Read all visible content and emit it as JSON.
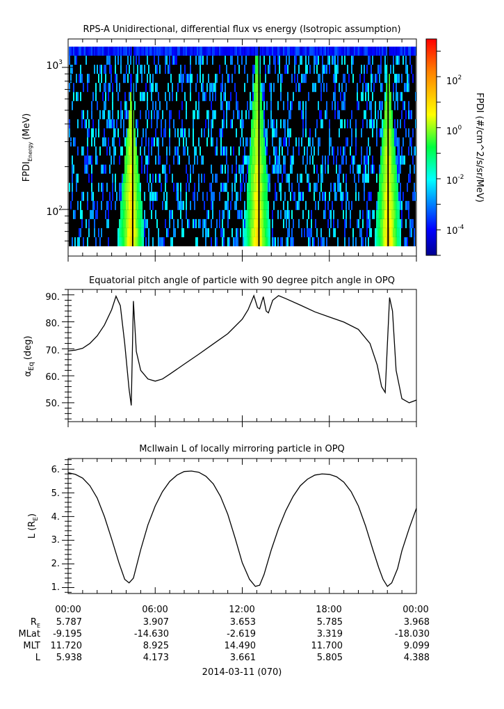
{
  "panels": [
    {
      "id": "spectrogram",
      "title": "RPS-A Unidirectional, differential flux vs energy (Isotropic assumption)",
      "ylabel_main": "FPDI",
      "ylabel_sub": "Energy",
      "ylabel_unit": "(MeV)",
      "yticks": [
        {
          "base": "10",
          "exp": "3"
        },
        {
          "base": "10",
          "exp": "2"
        }
      ]
    },
    {
      "id": "pitch-angle",
      "title": "Equatorial pitch angle of particle with 90 degree pitch angle in OPQ",
      "ylabel_main": "α",
      "ylabel_sub": "Eq",
      "ylabel_unit": "(deg)",
      "yticks": [
        "90.",
        "80.",
        "70.",
        "60.",
        "50."
      ]
    },
    {
      "id": "mcilwain-l",
      "title": "McIlwain L of locally mirroring particle in OPQ",
      "ylabel_main": "L (R",
      "ylabel_sub": "E",
      "ylabel_unit": ")",
      "yticks": [
        "6.",
        "5.",
        "4.",
        "3.",
        "2.",
        "1."
      ]
    }
  ],
  "colorbar": {
    "label": "FPDI (#/cm^2/s/sr/MeV)",
    "ticks": [
      {
        "base": "10",
        "exp": "2"
      },
      {
        "base": "10",
        "exp": "0"
      },
      {
        "base": "10",
        "exp": "-2"
      },
      {
        "base": "10",
        "exp": "-4"
      }
    ]
  },
  "xaxis": {
    "ticks": [
      "00:00",
      "06:00",
      "12:00",
      "18:00",
      "00:00"
    ],
    "ephemeris": [
      {
        "label_main": "R",
        "label_sub": "E",
        "values": [
          "5.787",
          "3.907",
          "3.653",
          "5.785",
          "3.968"
        ]
      },
      {
        "label_main": "MLat",
        "label_sub": "",
        "values": [
          "-9.195",
          "-14.630",
          "-2.619",
          "3.319",
          "-18.030"
        ]
      },
      {
        "label_main": "MLT",
        "label_sub": "",
        "values": [
          "11.720",
          "8.925",
          "14.490",
          "11.700",
          "9.099"
        ]
      },
      {
        "label_main": "L",
        "label_sub": "",
        "values": [
          "5.938",
          "4.173",
          "3.661",
          "5.805",
          "4.388"
        ]
      }
    ],
    "date_label": "2014-03-11 (070)"
  },
  "chart_data": [
    {
      "type": "heatmap",
      "title": "RPS-A Unidirectional, differential flux vs energy (Isotropic assumption)",
      "xlabel": "",
      "ylabel": "FPDI Energy (MeV)",
      "x_range_hours": [
        0,
        24
      ],
      "ylim": [
        55,
        1400
      ],
      "y_scale": "log",
      "color_scale": "log",
      "color_range": [
        1e-05,
        3000
      ],
      "colormap": "rainbow",
      "flux_peaks": [
        {
          "center_hour": 4.3,
          "max_energy": 550
        },
        {
          "center_hour": 13.0,
          "max_energy": 1400
        },
        {
          "center_hour": 22.0,
          "max_energy": 900
        }
      ]
    },
    {
      "type": "line",
      "title": "Equatorial pitch angle of particle with 90 degree pitch angle in OPQ",
      "xlabel": "",
      "ylabel": "α Eq (deg)",
      "ylim": [
        43,
        92
      ],
      "x": [
        0,
        0.5,
        1,
        1.5,
        2,
        2.5,
        3,
        3.3,
        3.6,
        3.9,
        4.2,
        4.35,
        4.5,
        4.7,
        5.0,
        5.5,
        6.0,
        6.5,
        7,
        8,
        9,
        10,
        11,
        12,
        12.4,
        12.8,
        13.05,
        13.2,
        13.45,
        13.65,
        13.8,
        14.1,
        14.5,
        15,
        16,
        17,
        18,
        19,
        20,
        20.8,
        21.3,
        21.6,
        21.85,
        22.0,
        22.15,
        22.35,
        22.6,
        23.0,
        23.5,
        24
      ],
      "values": [
        69.2,
        69.5,
        70.2,
        72.0,
        74.8,
        78.8,
        84.5,
        89.5,
        86.0,
        72.0,
        55.0,
        49.0,
        87.7,
        69.0,
        62.0,
        58.8,
        58.0,
        58.8,
        60.6,
        64.3,
        68.0,
        71.8,
        75.6,
        81.0,
        84.5,
        89.7,
        85.3,
        84.8,
        89.3,
        84.0,
        83.3,
        88.0,
        89.7,
        88.6,
        86.2,
        83.7,
        81.8,
        79.9,
        77.2,
        72.0,
        64.0,
        56.0,
        53.8,
        72.0,
        89.0,
        84.0,
        62.0,
        51.5,
        50.0,
        51.0
      ],
      "series": [
        {
          "name": "",
          "color": "#000000"
        }
      ]
    },
    {
      "type": "line",
      "title": "McIlwain L of locally mirroring particle in OPQ",
      "xlabel": "",
      "ylabel": "L (R E)",
      "ylim": [
        0.75,
        6.45
      ],
      "x": [
        0,
        0.5,
        1,
        1.5,
        2,
        2.5,
        3,
        3.5,
        3.9,
        4.2,
        4.5,
        5,
        5.5,
        6,
        6.5,
        7,
        7.5,
        8,
        8.5,
        9,
        9.5,
        10,
        10.5,
        11,
        11.5,
        12,
        12.5,
        12.9,
        13.2,
        13.5,
        14,
        14.5,
        15,
        15.5,
        16,
        16.5,
        17,
        17.5,
        18,
        18.5,
        19,
        19.5,
        20,
        20.5,
        21,
        21.4,
        21.7,
        22.0,
        22.3,
        22.7,
        23,
        23.5,
        24
      ],
      "values": [
        5.85,
        5.78,
        5.62,
        5.3,
        4.78,
        4.0,
        3.05,
        2.05,
        1.35,
        1.2,
        1.4,
        2.6,
        3.65,
        4.45,
        5.05,
        5.48,
        5.75,
        5.9,
        5.92,
        5.87,
        5.7,
        5.38,
        4.85,
        4.1,
        3.1,
        2.05,
        1.35,
        1.05,
        1.1,
        1.55,
        2.6,
        3.5,
        4.25,
        4.85,
        5.3,
        5.58,
        5.75,
        5.8,
        5.78,
        5.68,
        5.45,
        5.05,
        4.45,
        3.6,
        2.6,
        1.85,
        1.35,
        1.05,
        1.2,
        1.8,
        2.55,
        3.5,
        4.35
      ],
      "series": [
        {
          "name": "",
          "color": "#000000"
        }
      ]
    }
  ]
}
